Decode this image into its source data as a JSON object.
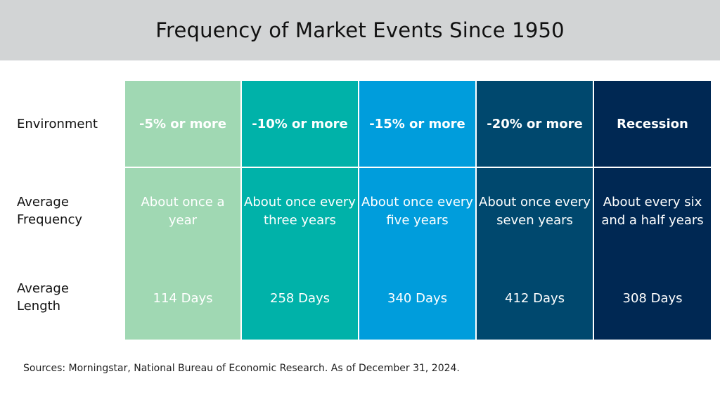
{
  "title": "Frequency of Market Events Since 1950",
  "row_labels": {
    "environment": "Environment",
    "frequency": "Average\nFrequency",
    "length": "Average\nLength"
  },
  "columns": [
    {
      "environment": "-5% or more",
      "frequency": "About once a year",
      "length": "114 Days",
      "color": "#a0d8b3"
    },
    {
      "environment": "-10% or more",
      "frequency": "About once every three years",
      "length": "258 Days",
      "color": "#00b2a9"
    },
    {
      "environment": "-15% or more",
      "frequency": "About once every five years",
      "length": "340 Days",
      "color": "#009ddc"
    },
    {
      "environment": "-20% or more",
      "frequency": "About once every seven years",
      "length": "412 Days",
      "color": "#00486e"
    },
    {
      "environment": "Recession",
      "frequency": "About every six and a half years",
      "length": "308 Days",
      "color": "#002853"
    }
  ],
  "source": "Sources: Morningstar, National Bureau of Economic Research. As of December 31, 2024.",
  "colors": {
    "title_bar": "#d2d4d5",
    "text_dark": "#111111",
    "cell_text": "#ffffff"
  }
}
